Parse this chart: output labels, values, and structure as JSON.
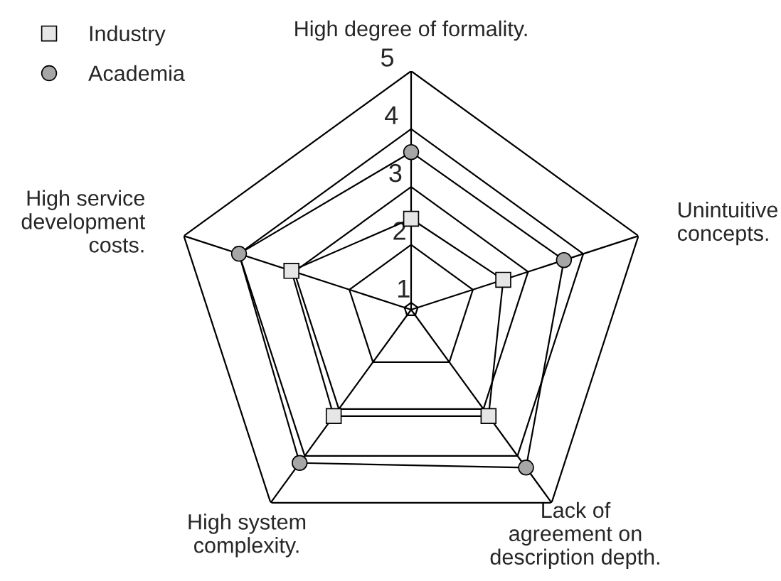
{
  "chart_data": {
    "type": "radar",
    "categories": [
      "High degree of formality.",
      "Unintuitive\nconcepts.",
      "Lack of\nagreement on\ndescription depth.",
      "High system\ncomplexity.",
      "High service\ndevelopment\ncosts."
    ],
    "series": [
      {
        "name": "Industry",
        "color": "#000000",
        "colors": [
          "#e6e6e6",
          "#e6e6e6",
          "#e6e6e6",
          "#e6e6e6",
          "#e6e6e6"
        ],
        "marker": "square",
        "values": [
          2.45,
          2.55,
          3.15,
          3.15,
          3.05
        ]
      },
      {
        "name": "Academia",
        "color": "#000000",
        "colors": [
          "#a6a6a6",
          "#a6a6a6",
          "#a6a6a6",
          "#a6a6a6",
          "#a6a6a6"
        ],
        "marker": "circle",
        "values": [
          3.6,
          3.65,
          4.25,
          4.15,
          4.0
        ]
      }
    ],
    "ylim": [
      0.88,
      5
    ],
    "yticks": [
      1,
      2,
      3,
      4,
      5
    ],
    "grid": true,
    "legend": "top left"
  }
}
